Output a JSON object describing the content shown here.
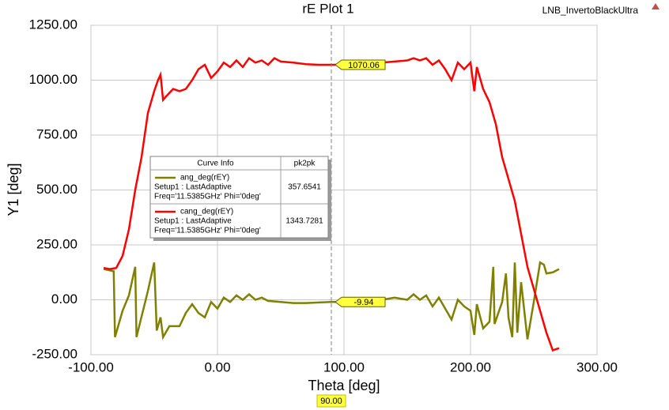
{
  "chart_data": {
    "type": "line",
    "title": "rE Plot 1",
    "project": "LNB_InvertoBlackUltra",
    "x_label": "Theta [deg]",
    "y_label": "Y1 [deg]",
    "xlim": [
      -100,
      300
    ],
    "ylim": [
      -250,
      1250
    ],
    "xticks": [
      {
        "value": -100,
        "label": "-100.00"
      },
      {
        "value": 0,
        "label": "0.00"
      },
      {
        "value": 100,
        "label": "100.00"
      },
      {
        "value": 200,
        "label": "200.00"
      },
      {
        "value": 300,
        "label": "300.00"
      }
    ],
    "yticks": [
      {
        "value": -250,
        "label": "-250.00"
      },
      {
        "value": 0,
        "label": "0.00"
      },
      {
        "value": 250,
        "label": "250.00"
      },
      {
        "value": 500,
        "label": "500.00"
      },
      {
        "value": 750,
        "label": "750.00"
      },
      {
        "value": 1000,
        "label": "1000.00"
      },
      {
        "value": 1250,
        "label": "1250.00"
      }
    ],
    "grid": true,
    "legend_header": [
      "Curve Info",
      "pk2pk"
    ],
    "series": [
      {
        "name": "ang_deg(rEY)",
        "setup": "Setup1 : LastAdaptive",
        "freq": "Freq='11.5385GHz' Phi='0deg'",
        "pk2pk": 357.6541,
        "color": "#808000",
        "x": [
          -90,
          -82,
          -81,
          -75,
          -70,
          -65,
          -64,
          -55,
          -50,
          -48,
          -45,
          -43,
          -38,
          -30,
          -25,
          -20,
          -15,
          -10,
          -5,
          0,
          5,
          10,
          15,
          20,
          25,
          30,
          35,
          40,
          50,
          60,
          70,
          80,
          90,
          100,
          120,
          130,
          140,
          150,
          155,
          160,
          165,
          170,
          175,
          180,
          185,
          190,
          195,
          200,
          203,
          205,
          210,
          215,
          218,
          219,
          225,
          228,
          230,
          233,
          235,
          237,
          240,
          245,
          250,
          255,
          258,
          260,
          265,
          270
        ],
        "values": [
          140,
          130,
          -170,
          -50,
          20,
          150,
          -170,
          40,
          170,
          -140,
          -80,
          -170,
          -120,
          -120,
          -60,
          -20,
          -60,
          -80,
          -10,
          -40,
          10,
          -10,
          20,
          0,
          25,
          0,
          10,
          -5,
          -10,
          -15,
          -15,
          -12,
          -9.94,
          -10,
          -10,
          0,
          10,
          0,
          25,
          0,
          20,
          -30,
          10,
          -40,
          -90,
          0,
          -30,
          -50,
          -160,
          -20,
          -130,
          -100,
          150,
          -110,
          -10,
          120,
          -80,
          -170,
          170,
          -150,
          80,
          -180,
          -10,
          170,
          160,
          120,
          125,
          140
        ]
      },
      {
        "name": "cang_deg(rEY)",
        "setup": "Setup1 : LastAdaptive",
        "freq": "Freq='11.5385GHz' Phi='0deg'",
        "pk2pk": 1343.7281,
        "color": "#ff0000",
        "x": [
          -90,
          -85,
          -80,
          -75,
          -70,
          -65,
          -60,
          -55,
          -50,
          -47,
          -45,
          -43,
          -40,
          -35,
          -30,
          -25,
          -20,
          -15,
          -10,
          -5,
          0,
          5,
          10,
          15,
          20,
          25,
          30,
          35,
          40,
          45,
          50,
          60,
          70,
          80,
          90,
          100,
          110,
          120,
          130,
          140,
          150,
          155,
          160,
          165,
          170,
          175,
          180,
          185,
          190,
          195,
          200,
          203,
          205,
          210,
          215,
          220,
          225,
          230,
          235,
          240,
          245,
          250,
          255,
          260,
          265,
          270
        ],
        "values": [
          145,
          140,
          145,
          200,
          320,
          500,
          650,
          850,
          950,
          1000,
          1025,
          910,
          930,
          960,
          950,
          960,
          1000,
          1050,
          1070,
          1010,
          1040,
          1080,
          1060,
          1090,
          1060,
          1100,
          1080,
          1090,
          1070,
          1100,
          1085,
          1080,
          1073,
          1070,
          1070.06,
          1070,
          1070,
          1072,
          1080,
          1085,
          1090,
          1100,
          1090,
          1100,
          1070,
          1090,
          1050,
          1000,
          1080,
          1050,
          1080,
          950,
          1060,
          960,
          900,
          800,
          650,
          550,
          450,
          300,
          150,
          50,
          -50,
          -150,
          -230,
          -220
        ]
      }
    ],
    "marker": {
      "x": {
        "value": 90,
        "label": "90.00"
      },
      "values": [
        1070.06,
        -9.94
      ]
    }
  }
}
